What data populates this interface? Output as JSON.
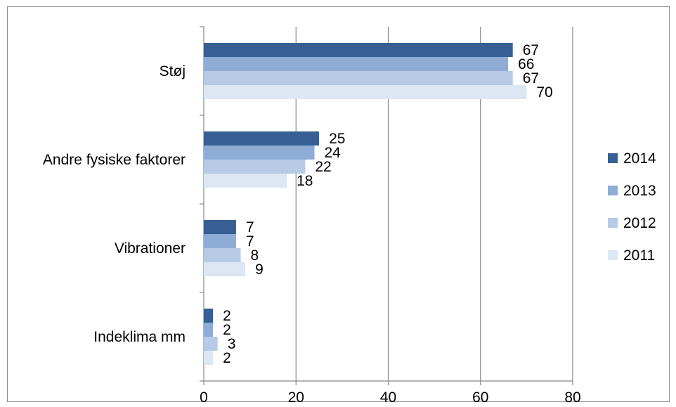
{
  "chart_data": {
    "type": "bar",
    "orientation": "horizontal",
    "categories": [
      "Støj",
      "Andre fysiske faktorer",
      "Vibrationer",
      "Indeklima mm"
    ],
    "series": [
      {
        "name": "2014",
        "values": [
          67,
          25,
          7,
          2
        ],
        "color": "#375f93"
      },
      {
        "name": "2013",
        "values": [
          66,
          24,
          7,
          2
        ],
        "color": "#8eacd6"
      },
      {
        "name": "2012",
        "values": [
          67,
          22,
          8,
          3
        ],
        "color": "#b7cae6"
      },
      {
        "name": "2011",
        "values": [
          70,
          18,
          9,
          2
        ],
        "color": "#dde6f3"
      }
    ],
    "data_labels": [
      [
        "67",
        "66",
        "67",
        "70"
      ],
      [
        "25",
        "24",
        "22",
        "18"
      ],
      [
        "7",
        "7",
        "8",
        "9"
      ],
      [
        "2",
        "2",
        "3",
        "2"
      ]
    ],
    "xlim": [
      0,
      80
    ],
    "xticks": [
      "0",
      "20",
      "40",
      "60",
      "80"
    ],
    "grid": "vertical",
    "legend": "right",
    "title": "",
    "xlabel": "",
    "ylabel": ""
  }
}
